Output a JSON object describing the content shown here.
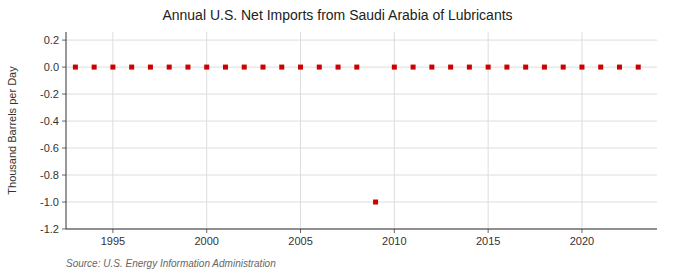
{
  "chart_data": {
    "type": "scatter",
    "title": "Annual U.S. Net Imports from Saudi Arabia of Lubricants",
    "y_label": "Thousand Barrels per Day",
    "source": "Source: U.S. Energy Information Administration",
    "x": [
      1993,
      1994,
      1995,
      1996,
      1997,
      1998,
      1999,
      2000,
      2001,
      2002,
      2003,
      2004,
      2005,
      2006,
      2007,
      2008,
      2009,
      2010,
      2011,
      2012,
      2013,
      2014,
      2015,
      2016,
      2017,
      2018,
      2019,
      2020,
      2021,
      2022,
      2023
    ],
    "values": [
      0,
      0,
      0,
      0,
      0,
      0,
      0,
      0,
      0,
      0,
      0,
      0,
      0,
      0,
      0,
      0,
      -1.0,
      0,
      0,
      0,
      0,
      0,
      0,
      0,
      0,
      0,
      0,
      0,
      0,
      0,
      0
    ],
    "color": "#cc0000",
    "marker": "square",
    "xlim": [
      1992.5,
      2024
    ],
    "xticks": [
      1995,
      2000,
      2005,
      2010,
      2015,
      2020
    ],
    "ylim": [
      -1.2,
      0.26
    ],
    "yticks": [
      0.2,
      {
        "value": 0,
        "label": "0.0"
      },
      -0.2,
      -0.4,
      -0.6,
      -0.8,
      {
        "value": -1,
        "label": "-1.0"
      },
      -1.2
    ],
    "grid": true
  }
}
